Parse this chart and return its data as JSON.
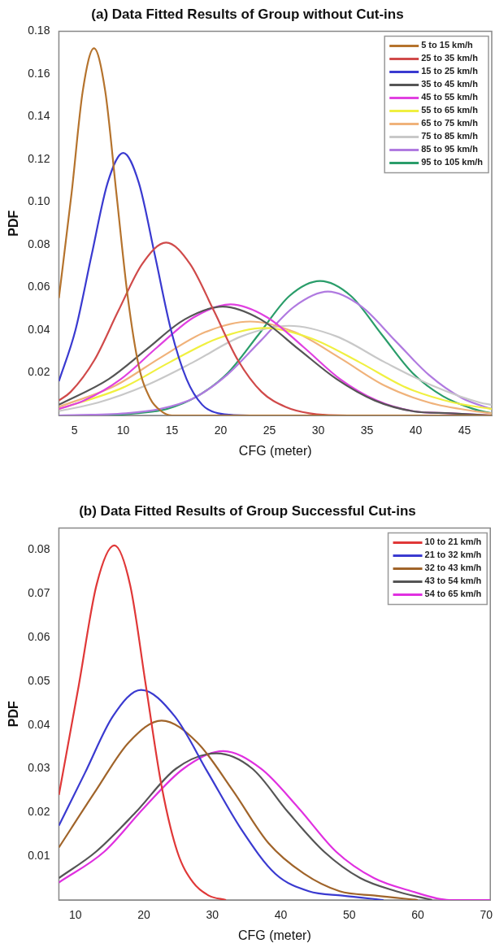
{
  "chart_data": [
    {
      "type": "line",
      "title": "(a) Data Fitted Results of Group without Cut-ins",
      "xlabel": "CFG (meter)",
      "ylabel": "PDF",
      "xlim": [
        3.4,
        47.8
      ],
      "xticks": [
        5,
        10,
        15,
        20,
        25,
        30,
        35,
        40,
        45
      ],
      "ylim": [
        0,
        0.18
      ],
      "yticks": [
        {
          "value": 0.02,
          "label": "0.02"
        },
        {
          "value": 0.04,
          "label": "0.04"
        },
        {
          "value": 0.06,
          "label": "0.06"
        },
        {
          "value": 0.08,
          "label": "0.08"
        },
        {
          "value": 0.1,
          "label": "0.10"
        },
        {
          "value": 0.12,
          "label": "0.12"
        },
        {
          "value": 0.14,
          "label": "0.14"
        },
        {
          "value": 0.16,
          "label": "0.16"
        },
        {
          "value": 0.18,
          "label": "0.18"
        }
      ],
      "grid": false,
      "legend": "top right",
      "marker": "none",
      "line_style": "solid",
      "series": [
        {
          "name": "5 to 15 km/h",
          "color": "#b5732d",
          "x": [
            3.4,
            4.7,
            5.85,
            7,
            8.15,
            9.3,
            10.45,
            11.6,
            12.75,
            13.9,
            15,
            20,
            47.8
          ],
          "values": [
            0.055,
            0.104,
            0.152,
            0.172,
            0.152,
            0.104,
            0.056,
            0.023,
            0.008,
            0.002,
            0,
            0,
            0
          ]
        },
        {
          "name": "25 to 35 km/h",
          "color": "#d04a4a",
          "x": [
            3.4,
            4.6,
            7.05,
            9.5,
            11.95,
            14.4,
            16.85,
            19.3,
            21.75,
            24.2,
            26.65,
            29.1,
            33,
            47.8
          ],
          "values": [
            0.007,
            0.011,
            0.026,
            0.049,
            0.071,
            0.081,
            0.071,
            0.049,
            0.026,
            0.011,
            0.004,
            0.001,
            0,
            0
          ]
        },
        {
          "name": "15 to 25 km/h",
          "color": "#3a3ad0",
          "x": [
            3.4,
            5.1,
            6.75,
            8.4,
            10,
            11.6,
            13.25,
            14.9,
            16.5,
            18.1,
            19.75,
            23,
            47.8
          ],
          "values": [
            0.016,
            0.04,
            0.075,
            0.109,
            0.123,
            0.109,
            0.075,
            0.04,
            0.017,
            0.005,
            0.001,
            0,
            0
          ]
        },
        {
          "name": "35 to 45 km/h",
          "color": "#555555",
          "x": [
            3.4,
            8.5,
            12.4,
            16.3,
            20.2,
            24.1,
            28,
            31.9,
            35.8,
            39.7,
            43.6,
            47.8
          ],
          "values": [
            0.005,
            0.017,
            0.031,
            0.045,
            0.051,
            0.045,
            0.031,
            0.017,
            0.007,
            0.002,
            0.001,
            0
          ]
        },
        {
          "name": "45 to 55 km/h",
          "color": "#e040e0",
          "x": [
            3.4,
            6,
            9.75,
            13.5,
            17.25,
            21,
            24.75,
            28.5,
            32.25,
            36,
            39.75,
            43.5,
            47.8
          ],
          "values": [
            0.003,
            0.007,
            0.017,
            0.032,
            0.046,
            0.052,
            0.046,
            0.032,
            0.017,
            0.007,
            0.002,
            0.001,
            0
          ]
        },
        {
          "name": "55 to 65 km/h",
          "color": "#f0f040",
          "x": [
            3.4,
            9.95,
            14.8,
            19.65,
            24.5,
            29.35,
            34.2,
            39.05,
            43.9,
            47.8
          ],
          "values": [
            0.003,
            0.013,
            0.025,
            0.036,
            0.041,
            0.036,
            0.025,
            0.013,
            0.006,
            0.003
          ]
        },
        {
          "name": "65 to 75 km/h",
          "color": "#f0b27a",
          "x": [
            3.4,
            9.2,
            13.8,
            18.4,
            23,
            27.6,
            32.2,
            36.8,
            41.4,
            46,
            47.8
          ],
          "values": [
            0.004,
            0.014,
            0.027,
            0.039,
            0.044,
            0.039,
            0.027,
            0.014,
            0.006,
            0.002,
            0.001
          ]
        },
        {
          "name": "75 to 85 km/h",
          "color": "#c8c8c8",
          "x": [
            3.4,
            7.4,
            12.3,
            17.2,
            22.1,
            27,
            31.9,
            36.8,
            41.7,
            46.6,
            47.8
          ],
          "values": [
            0.002,
            0.006,
            0.014,
            0.025,
            0.037,
            0.042,
            0.037,
            0.025,
            0.014,
            0.006,
            0.005
          ]
        },
        {
          "name": "85 to 95 km/h",
          "color": "#b07ae0",
          "x": [
            3.4,
            10.3,
            13.75,
            17.2,
            20.65,
            24.1,
            27.55,
            31,
            34.45,
            37.9,
            41.35,
            44.8,
            47.8
          ],
          "values": [
            0,
            0.001,
            0.003,
            0.008,
            0.019,
            0.035,
            0.051,
            0.058,
            0.051,
            0.035,
            0.019,
            0.008,
            0.003
          ]
        },
        {
          "name": "95 to 105 km/h",
          "color": "#2a9d6a",
          "x": [
            3.4,
            8,
            11.3,
            14.45,
            17.6,
            20.75,
            23.9,
            27.05,
            30.2,
            33.35,
            36.5,
            39.65,
            42.8,
            45.95,
            47.8
          ],
          "values": [
            0,
            0,
            0.001,
            0.003,
            0.009,
            0.02,
            0.038,
            0.056,
            0.063,
            0.056,
            0.038,
            0.02,
            0.009,
            0.003,
            0.001
          ]
        }
      ]
    },
    {
      "type": "line",
      "title": "(b) Data Fitted Results of Group Successful Cut-ins",
      "xlabel": "CFG (meter)",
      "ylabel": "PDF",
      "xlim": [
        7.6,
        70.6
      ],
      "xticks": [
        10,
        20,
        30,
        40,
        50,
        60,
        70
      ],
      "ylim": [
        0,
        0.085
      ],
      "yticks": [
        0.01,
        0.02,
        0.03,
        0.04,
        0.05,
        0.06,
        0.07,
        0.08
      ],
      "grid": false,
      "legend": "top right",
      "marker": "none",
      "line_style": "solid",
      "series": [
        {
          "name": "10 to 21 km/h",
          "color": "#e03838",
          "x": [
            7.6,
            10.5,
            13.1,
            15.7,
            18,
            20.3,
            22.6,
            24.9,
            27.2,
            29.5,
            32
          ],
          "values": [
            0.024,
            0.049,
            0.072,
            0.081,
            0.072,
            0.049,
            0.026,
            0.011,
            0.004,
            0.001,
            0
          ]
        },
        {
          "name": "21 to 32 km/h",
          "color": "#3a3ad0",
          "x": [
            7.6,
            11.4,
            15.5,
            19.6,
            24.5,
            29.4,
            34.3,
            39.2,
            44.1,
            49,
            55
          ],
          "values": [
            0.017,
            0.029,
            0.042,
            0.048,
            0.042,
            0.029,
            0.016,
            0.006,
            0.002,
            0.001,
            0
          ]
        },
        {
          "name": "32 to 43 km/h",
          "color": "#a0642a",
          "x": [
            7.6,
            13,
            17.8,
            22.6,
            27.8,
            33,
            38.2,
            43.4,
            48.6,
            53.8,
            60
          ],
          "values": [
            0.012,
            0.025,
            0.036,
            0.041,
            0.036,
            0.025,
            0.013,
            0.006,
            0.002,
            0.001,
            0
          ]
        },
        {
          "name": "43 to 54 km/h",
          "color": "#555555",
          "x": [
            7.6,
            13,
            18.8,
            24.7,
            30.6,
            35.85,
            41.1,
            46.35,
            51.6,
            56.85,
            62.1
          ],
          "values": [
            0.005,
            0.011,
            0.02,
            0.03,
            0.0335,
            0.03,
            0.02,
            0.011,
            0.005,
            0.002,
            0
          ]
        },
        {
          "name": "54 to 65 km/h",
          "color": "#e030e0",
          "x": [
            7.6,
            14.2,
            20,
            25.8,
            31.6,
            37.1,
            42.6,
            48.1,
            53.6,
            59.1,
            64.6,
            70.6
          ],
          "values": [
            0.004,
            0.011,
            0.021,
            0.03,
            0.034,
            0.03,
            0.021,
            0.011,
            0.005,
            0.002,
            0,
            0
          ]
        }
      ]
    }
  ]
}
